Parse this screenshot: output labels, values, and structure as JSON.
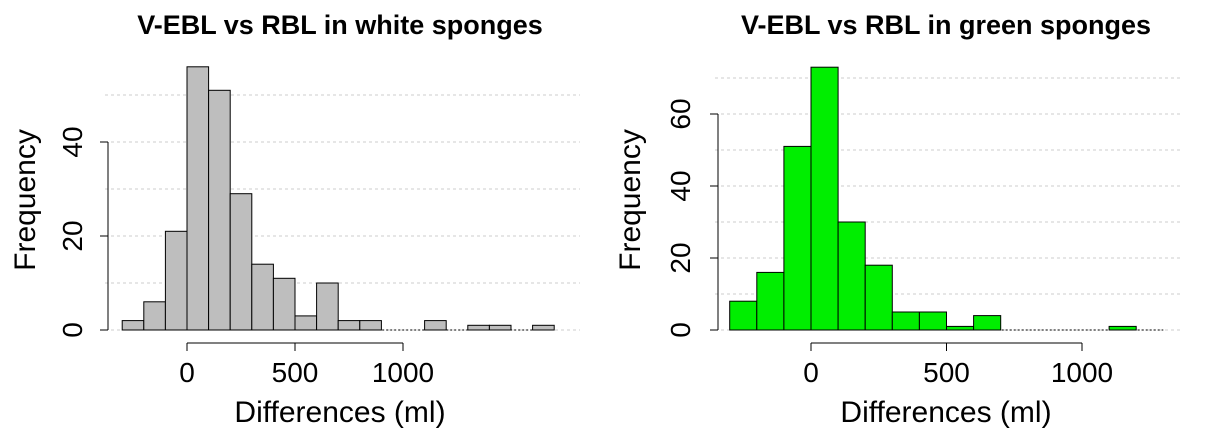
{
  "chart_data": [
    {
      "type": "histogram",
      "title": "V-EBL vs RBL in white sponges",
      "x_label": "Differences (ml)",
      "y_label": "Frequency",
      "bins": [
        -300,
        -200,
        -100,
        0,
        100,
        200,
        300,
        400,
        500,
        600,
        700,
        800,
        900,
        1000,
        1100,
        1200,
        1300,
        1400,
        1500,
        1600,
        1700
      ],
      "values": [
        2,
        6,
        21,
        56,
        51,
        29,
        14,
        11,
        3,
        10,
        2,
        2,
        0,
        0,
        2,
        0,
        1,
        1,
        0,
        1
      ],
      "color": "#bebebe",
      "xlim": [
        -300,
        1700
      ],
      "ylim": [
        0,
        56
      ],
      "xticks": [
        0,
        500,
        1000
      ],
      "yticks": [
        0,
        20,
        40
      ],
      "minor_grid": [
        10,
        30,
        50
      ],
      "grid": true
    },
    {
      "type": "histogram",
      "title": "V-EBL vs RBL in green sponges",
      "x_label": "Differences (ml)",
      "y_label": "Frequency",
      "bins": [
        -300,
        -200,
        -100,
        0,
        100,
        200,
        300,
        400,
        500,
        600,
        700,
        800,
        900,
        1000,
        1100,
        1200,
        1300
      ],
      "values": [
        8,
        16,
        51,
        73,
        30,
        18,
        5,
        5,
        1,
        4,
        0,
        0,
        0,
        0,
        1,
        0
      ],
      "color": "#00ee00",
      "xlim": [
        -300,
        1300
      ],
      "ylim": [
        0,
        73
      ],
      "xticks": [
        0,
        500,
        1000
      ],
      "yticks": [
        0,
        20,
        40,
        60
      ],
      "minor_grid": [
        10,
        30,
        50,
        70
      ],
      "grid": true
    }
  ]
}
